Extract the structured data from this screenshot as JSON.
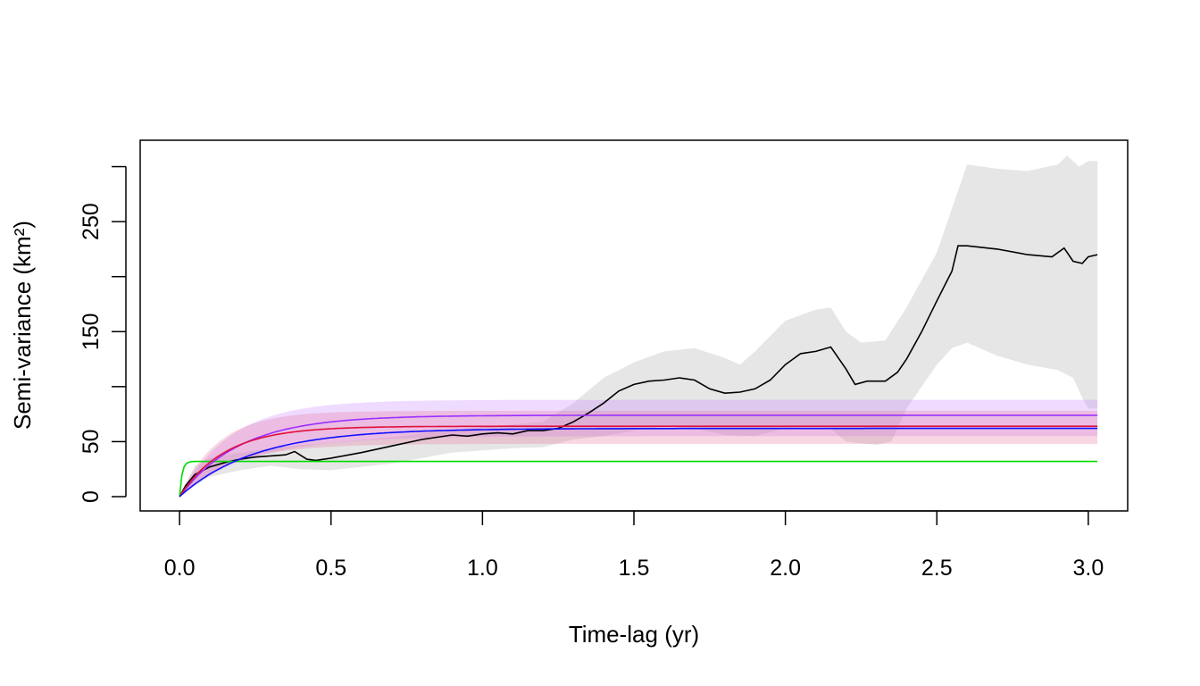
{
  "chart_data": {
    "type": "line",
    "title": "",
    "xlabel": "Time-lag (yr)",
    "ylabel": "Semi-variance (km²)",
    "xlim": [
      -0.13,
      3.13
    ],
    "ylim": [
      -13,
      324
    ],
    "x_ticks": [
      0.0,
      0.5,
      1.0,
      1.5,
      2.0,
      2.5,
      3.0
    ],
    "x_tick_labels": [
      "0.0",
      "0.5",
      "1.0",
      "1.5",
      "2.0",
      "2.5",
      "3.0"
    ],
    "y_ticks": [
      0,
      50,
      100,
      150,
      200,
      250,
      300
    ],
    "y_tick_labels": [
      "0",
      "50",
      "",
      "150",
      "",
      "250",
      ""
    ],
    "grid": false,
    "legend": "none",
    "empirical": {
      "color": "#000000",
      "band_color": "#e6e6e6",
      "points": [
        [
          0,
          0
        ],
        [
          0.02,
          10
        ],
        [
          0.05,
          20
        ],
        [
          0.1,
          27
        ],
        [
          0.15,
          31
        ],
        [
          0.2,
          34
        ],
        [
          0.25,
          36
        ],
        [
          0.3,
          37
        ],
        [
          0.35,
          38
        ],
        [
          0.38,
          41
        ],
        [
          0.42,
          34
        ],
        [
          0.45,
          33
        ],
        [
          0.5,
          35
        ],
        [
          0.6,
          40
        ],
        [
          0.7,
          46
        ],
        [
          0.8,
          52
        ],
        [
          0.9,
          56
        ],
        [
          0.95,
          55
        ],
        [
          1.0,
          57
        ],
        [
          1.05,
          58
        ],
        [
          1.1,
          57
        ],
        [
          1.15,
          60
        ],
        [
          1.2,
          60
        ],
        [
          1.25,
          62
        ],
        [
          1.3,
          68
        ],
        [
          1.35,
          76
        ],
        [
          1.4,
          85
        ],
        [
          1.45,
          96
        ],
        [
          1.5,
          102
        ],
        [
          1.55,
          105
        ],
        [
          1.6,
          106
        ],
        [
          1.65,
          108
        ],
        [
          1.7,
          106
        ],
        [
          1.75,
          98
        ],
        [
          1.8,
          94
        ],
        [
          1.85,
          95
        ],
        [
          1.9,
          98
        ],
        [
          1.95,
          106
        ],
        [
          2.0,
          120
        ],
        [
          2.05,
          130
        ],
        [
          2.1,
          132
        ],
        [
          2.15,
          136
        ],
        [
          2.2,
          116
        ],
        [
          2.23,
          102
        ],
        [
          2.27,
          105
        ],
        [
          2.33,
          105
        ],
        [
          2.37,
          113
        ],
        [
          2.4,
          125
        ],
        [
          2.45,
          150
        ],
        [
          2.5,
          178
        ],
        [
          2.55,
          205
        ],
        [
          2.57,
          228
        ],
        [
          2.6,
          228
        ],
        [
          2.7,
          225
        ],
        [
          2.8,
          220
        ],
        [
          2.88,
          218
        ],
        [
          2.92,
          226
        ],
        [
          2.95,
          214
        ],
        [
          2.98,
          212
        ],
        [
          3.0,
          218
        ],
        [
          3.03,
          220
        ]
      ],
      "band_upper": [
        [
          0,
          0
        ],
        [
          0.05,
          28
        ],
        [
          0.1,
          35
        ],
        [
          0.2,
          40
        ],
        [
          0.3,
          44
        ],
        [
          0.4,
          47
        ],
        [
          0.5,
          49
        ],
        [
          0.7,
          54
        ],
        [
          0.9,
          61
        ],
        [
          1.0,
          63
        ],
        [
          1.2,
          68
        ],
        [
          1.3,
          85
        ],
        [
          1.4,
          108
        ],
        [
          1.5,
          122
        ],
        [
          1.6,
          132
        ],
        [
          1.7,
          135
        ],
        [
          1.8,
          126
        ],
        [
          1.85,
          120
        ],
        [
          1.9,
          132
        ],
        [
          2.0,
          160
        ],
        [
          2.1,
          170
        ],
        [
          2.15,
          172
        ],
        [
          2.2,
          150
        ],
        [
          2.25,
          140
        ],
        [
          2.33,
          142
        ],
        [
          2.4,
          172
        ],
        [
          2.5,
          222
        ],
        [
          2.55,
          262
        ],
        [
          2.6,
          302
        ],
        [
          2.7,
          298
        ],
        [
          2.8,
          296
        ],
        [
          2.9,
          302
        ],
        [
          2.93,
          310
        ],
        [
          2.97,
          300
        ],
        [
          3.0,
          305
        ],
        [
          3.03,
          305
        ]
      ],
      "band_lower": [
        [
          0,
          0
        ],
        [
          0.05,
          10
        ],
        [
          0.1,
          18
        ],
        [
          0.2,
          24
        ],
        [
          0.3,
          28
        ],
        [
          0.4,
          25
        ],
        [
          0.5,
          24
        ],
        [
          0.7,
          30
        ],
        [
          0.9,
          40
        ],
        [
          1.0,
          42
        ],
        [
          1.1,
          44
        ],
        [
          1.2,
          45
        ],
        [
          1.3,
          52
        ],
        [
          1.4,
          55
        ],
        [
          1.5,
          60
        ],
        [
          1.6,
          64
        ],
        [
          1.7,
          62
        ],
        [
          1.8,
          56
        ],
        [
          1.9,
          55
        ],
        [
          2.0,
          62
        ],
        [
          2.1,
          64
        ],
        [
          2.15,
          62
        ],
        [
          2.2,
          50
        ],
        [
          2.3,
          47
        ],
        [
          2.35,
          50
        ],
        [
          2.4,
          80
        ],
        [
          2.5,
          120
        ],
        [
          2.55,
          135
        ],
        [
          2.6,
          140
        ],
        [
          2.7,
          128
        ],
        [
          2.8,
          120
        ],
        [
          2.9,
          115
        ],
        [
          2.95,
          108
        ],
        [
          2.98,
          90
        ],
        [
          3.0,
          80
        ],
        [
          3.03,
          80
        ]
      ]
    },
    "series": [
      {
        "color": "#00dd00",
        "sill": 32,
        "tau": 0.008,
        "band": false
      },
      {
        "color": "#9b30ff",
        "sill": 74,
        "tau": 0.2,
        "band": true,
        "band_color": "#c77dff",
        "band_low": 55,
        "band_high": 88
      },
      {
        "color": "#e0103c",
        "sill": 64,
        "tau": 0.15,
        "band": true,
        "band_color": "#e66a9a",
        "band_low": 48,
        "band_high": 78
      },
      {
        "color": "#1010ff",
        "sill": 62,
        "tau": 0.25,
        "band": false
      }
    ]
  }
}
